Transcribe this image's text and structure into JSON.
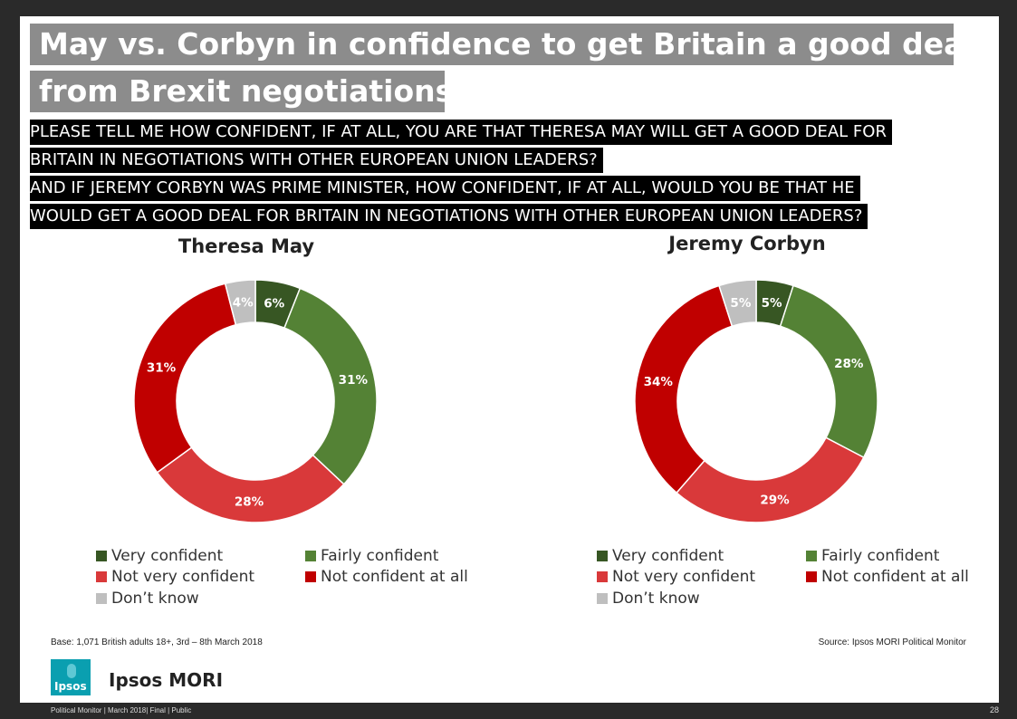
{
  "title_line1": "May vs. Corbyn in confidence to get Britain a good deal",
  "title_line2": "from Brexit negotiations",
  "question": [
    "PLEASE TELL ME HOW CONFIDENT, IF AT ALL, YOU ARE THAT THERESA MAY WILL GET A GOOD DEAL FOR",
    "BRITAIN IN NEGOTIATIONS WITH OTHER EUROPEAN UNION LEADERS?",
    "AND IF JEREMY CORBYN WAS PRIME MINISTER, HOW CONFIDENT, IF AT ALL, WOULD YOU BE THAT HE",
    "WOULD GET A GOOD DEAL FOR BRITAIN IN NEGOTIATIONS WITH OTHER EUROPEAN UNION LEADERS?"
  ],
  "colors": {
    "very_confident": "#375623",
    "fairly_confident": "#548235",
    "not_very_confident": "#d9393a",
    "not_confident_at_all": "#c00000",
    "dont_know": "#bfbfbf"
  },
  "chart_data": [
    {
      "type": "pie",
      "title": "Theresa May",
      "categories": [
        "Very confident",
        "Fairly confident",
        "Not very confident",
        "Not confident at all",
        "Don’t know"
      ],
      "values": [
        6,
        31,
        28,
        31,
        4
      ],
      "labels": [
        "6%",
        "31%",
        "28%",
        "31%",
        "4%"
      ]
    },
    {
      "type": "pie",
      "title": "Jeremy Corbyn",
      "categories": [
        "Very confident",
        "Fairly confident",
        "Not very confident",
        "Not confident at all",
        "Don’t know"
      ],
      "values": [
        5,
        28,
        29,
        34,
        5
      ],
      "labels": [
        "5%",
        "28%",
        "29%",
        "34%",
        "5%"
      ]
    }
  ],
  "base_note": "Base: 1,071 British adults 18+, 3rd – 8th March 2018",
  "source_note": "Source: Ipsos MORI Political Monitor",
  "logo_text": "Ipsos",
  "brand": "Ipsos MORI",
  "footer_left": "Political Monitor | March 2018| Final | Public",
  "page_number": "28"
}
